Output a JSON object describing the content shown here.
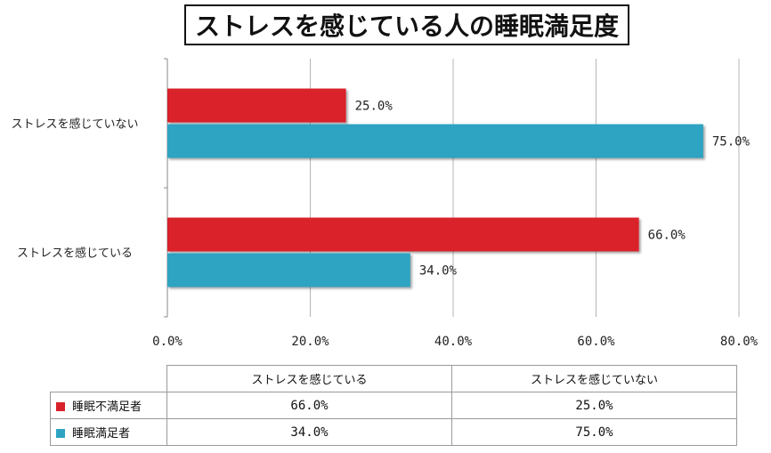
{
  "chart_data": {
    "type": "bar",
    "orientation": "horizontal",
    "title": "ストレスを感じている人の睡眠満足度",
    "categories": [
      "ストレスを感じていない",
      "ストレスを感じている"
    ],
    "series": [
      {
        "name": "睡眠不満足者",
        "color": "#d9212b",
        "values": [
          25.0,
          66.0
        ],
        "labels": [
          "25.0%",
          "66.0%"
        ]
      },
      {
        "name": "睡眠満足者",
        "color": "#2ea3c2",
        "values": [
          75.0,
          34.0
        ],
        "labels": [
          "75.0%",
          "34.0%"
        ]
      }
    ],
    "xlim": [
      0,
      80
    ],
    "xticks": [
      "0.0%",
      "20.0%",
      "40.0%",
      "60.0%",
      "80.0%"
    ],
    "grid": true,
    "xlabel": "",
    "ylabel": ""
  },
  "table": {
    "columns": [
      "ストレスを感じている",
      "ストレスを感じていない"
    ],
    "rows": [
      {
        "name": "睡眠不満足者",
        "values": [
          "66.0%",
          "25.0%"
        ]
      },
      {
        "name": "睡眠満足者",
        "values": [
          "34.0%",
          "75.0%"
        ]
      }
    ]
  }
}
